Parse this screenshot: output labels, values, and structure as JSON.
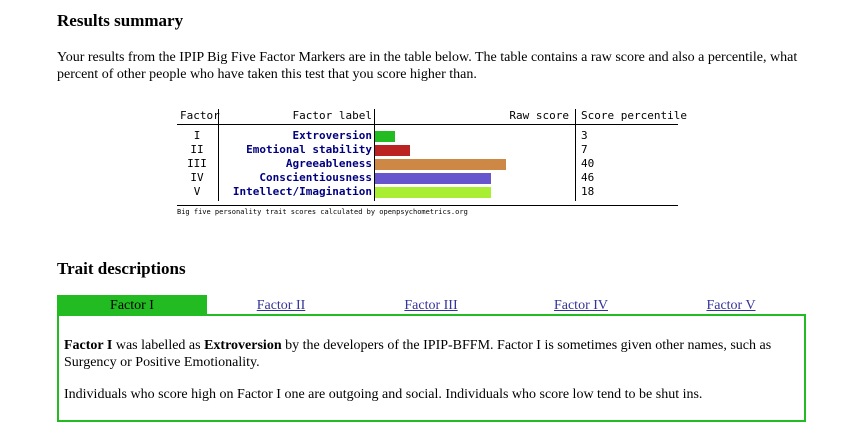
{
  "summary": {
    "heading": "Results summary",
    "intro": "Your results from the IPIP Big Five Factor Markers are in the table below. The table contains a raw score and also a percentile, what percent of other people who have taken this test that you score higher than."
  },
  "table": {
    "headers": {
      "factor": "Factor",
      "label": "Factor label",
      "raw": "Raw score",
      "percentile": "Score percentile"
    },
    "rows": [
      {
        "factor": "I",
        "label": "Extroversion",
        "percentile": "3",
        "color": "#22bb22",
        "bar_fraction": 0.1
      },
      {
        "factor": "II",
        "label": "Emotional stability",
        "percentile": "7",
        "color": "#bb2222",
        "bar_fraction": 0.175
      },
      {
        "factor": "III",
        "label": "Agreeableness",
        "percentile": "40",
        "color": "#cc8844",
        "bar_fraction": 0.655
      },
      {
        "factor": "IV",
        "label": "Conscientiousness",
        "percentile": "46",
        "color": "#6655cc",
        "bar_fraction": 0.58
      },
      {
        "factor": "V",
        "label": "Intellect/Imagination",
        "percentile": "18",
        "color": "#aaee33",
        "bar_fraction": 0.58
      }
    ],
    "caption": "Big five personality trait scores calculated by openpsychometrics.org"
  },
  "traits": {
    "heading": "Trait descriptions",
    "tabs": [
      "Factor I",
      "Factor II",
      "Factor III",
      "Factor IV",
      "Factor V"
    ],
    "active_tab": 0,
    "p1": {
      "b1": "Factor I",
      "t1": " was labelled as ",
      "b2": "Extroversion",
      "t2": " by the developers of the IPIP-BFFM. Factor I is sometimes given other names, such as Surgency or Positive Emotionality."
    },
    "p2": "Individuals who score high on Factor I one are outgoing and social. Individuals who score low tend to be shut ins."
  }
}
